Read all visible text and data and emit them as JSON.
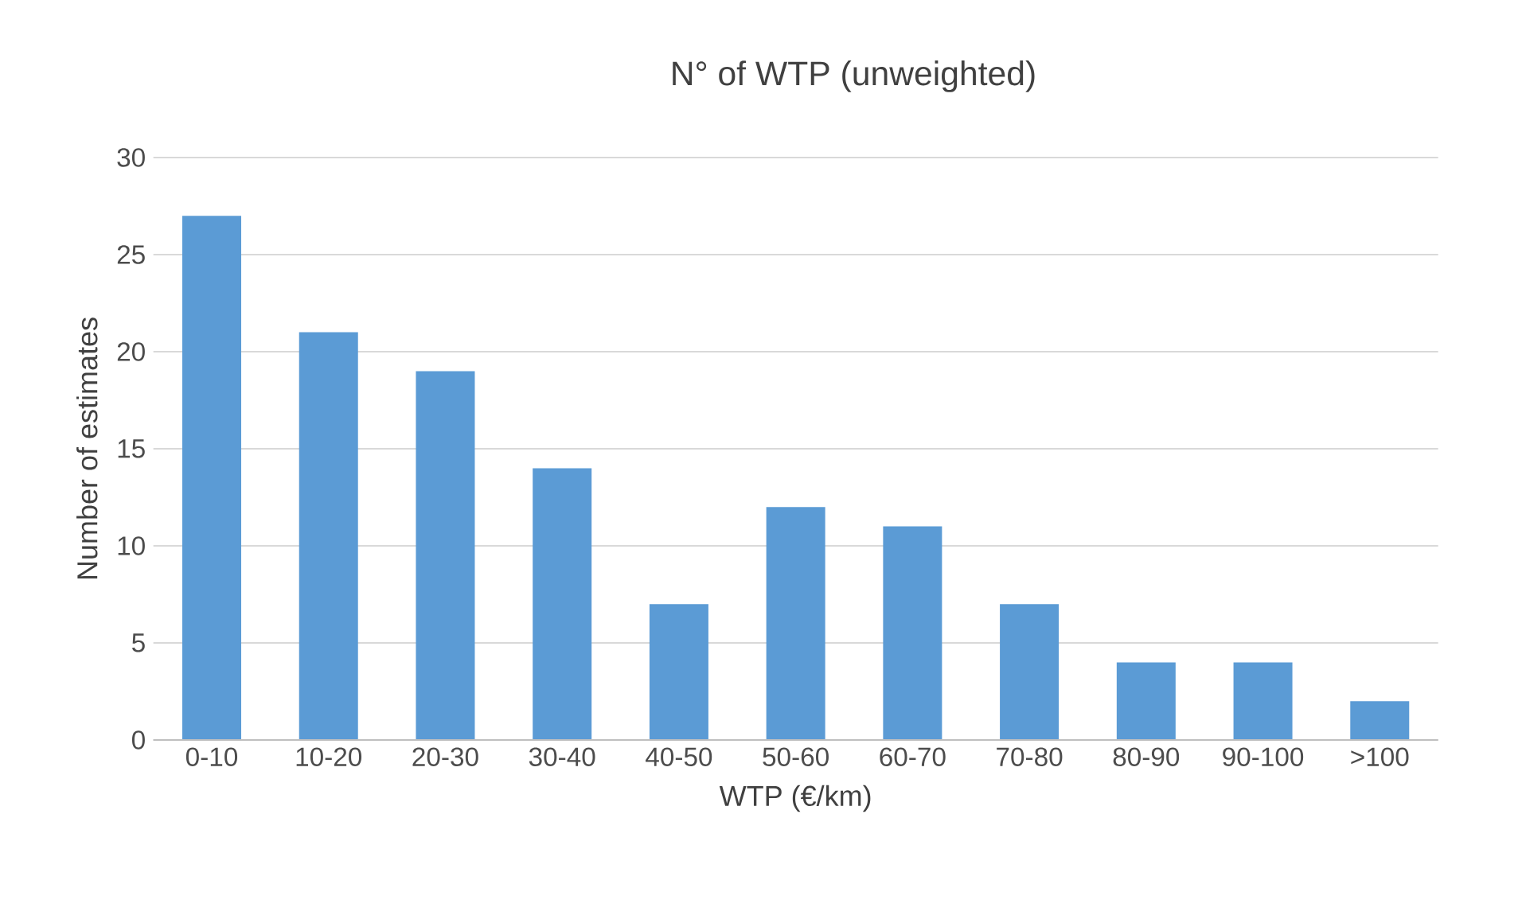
{
  "chart_data": {
    "type": "bar",
    "title": "N° of WTP (unweighted)",
    "xlabel": "WTP (€/km)",
    "ylabel": "Number of estimates",
    "categories": [
      "0-10",
      "10-20",
      "20-30",
      "30-40",
      "40-50",
      "50-60",
      "60-70",
      "70-80",
      "80-90",
      "90-100",
      ">100"
    ],
    "values": [
      27,
      21,
      19,
      14,
      7,
      12,
      11,
      7,
      4,
      4,
      2
    ],
    "color": "#5b9bd5",
    "ylim": [
      0,
      30
    ],
    "yticks": [
      0,
      5,
      10,
      15,
      20,
      25,
      30
    ],
    "grid": "y"
  }
}
